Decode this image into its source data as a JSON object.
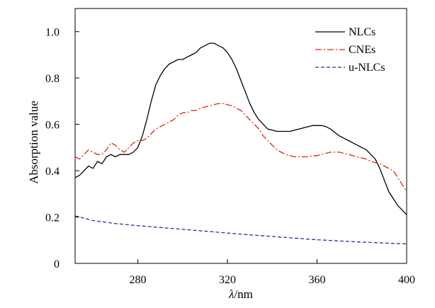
{
  "chart_data": {
    "type": "line",
    "title": "",
    "xlabel_italic": "λ",
    "xlabel_rest": "/nm",
    "ylabel": "Absorption value",
    "xlim": [
      252,
      400
    ],
    "ylim": [
      0,
      1.1
    ],
    "xticks": [
      280,
      320,
      360,
      400
    ],
    "xtick_labels": [
      "280",
      "320",
      "360",
      "400"
    ],
    "yticks": [
      0,
      0.2,
      0.4,
      0.6,
      0.8,
      1.0
    ],
    "ytick_labels": [
      "0",
      "0.2",
      "0.4",
      "0.6",
      "0.8",
      "1.0"
    ],
    "grid": false,
    "legend_position": "top-right",
    "series": [
      {
        "name": "NLCs",
        "color": "#000000",
        "dash": "solid",
        "x": [
          252,
          254,
          256,
          258,
          260,
          262,
          264,
          266,
          268,
          270,
          272,
          274,
          276,
          278,
          280,
          282,
          284,
          286,
          288,
          290,
          292,
          294,
          296,
          298,
          300,
          302,
          304,
          306,
          308,
          310,
          312,
          314,
          316,
          318,
          320,
          322,
          324,
          326,
          328,
          330,
          332,
          334,
          336,
          338,
          340,
          342,
          344,
          346,
          348,
          350,
          352,
          354,
          356,
          358,
          360,
          362,
          364,
          366,
          368,
          370,
          372,
          374,
          376,
          378,
          380,
          382,
          384,
          386,
          388,
          390,
          392,
          394,
          396,
          398,
          400
        ],
        "y": [
          0.37,
          0.38,
          0.4,
          0.42,
          0.41,
          0.44,
          0.43,
          0.46,
          0.47,
          0.46,
          0.47,
          0.47,
          0.47,
          0.48,
          0.5,
          0.55,
          0.62,
          0.7,
          0.77,
          0.81,
          0.84,
          0.86,
          0.87,
          0.88,
          0.88,
          0.89,
          0.9,
          0.91,
          0.93,
          0.94,
          0.95,
          0.95,
          0.94,
          0.93,
          0.91,
          0.88,
          0.84,
          0.79,
          0.74,
          0.69,
          0.65,
          0.62,
          0.6,
          0.58,
          0.575,
          0.57,
          0.57,
          0.57,
          0.57,
          0.575,
          0.58,
          0.585,
          0.59,
          0.595,
          0.595,
          0.595,
          0.59,
          0.58,
          0.565,
          0.55,
          0.54,
          0.53,
          0.52,
          0.51,
          0.5,
          0.49,
          0.47,
          0.45,
          0.41,
          0.36,
          0.31,
          0.28,
          0.25,
          0.23,
          0.21
        ]
      },
      {
        "name": "CNEs",
        "color": "#d42a14",
        "dash": "dashdot",
        "x": [
          252,
          254,
          256,
          258,
          260,
          262,
          264,
          266,
          268,
          270,
          272,
          274,
          276,
          278,
          280,
          282,
          284,
          286,
          288,
          290,
          292,
          294,
          296,
          298,
          300,
          302,
          304,
          306,
          308,
          310,
          312,
          314,
          316,
          318,
          320,
          322,
          324,
          326,
          328,
          330,
          332,
          334,
          336,
          338,
          340,
          342,
          344,
          346,
          348,
          350,
          352,
          354,
          356,
          358,
          360,
          362,
          364,
          366,
          368,
          370,
          372,
          374,
          376,
          378,
          380,
          382,
          384,
          386,
          388,
          390,
          392,
          394,
          396,
          398,
          400
        ],
        "y": [
          0.46,
          0.45,
          0.47,
          0.49,
          0.48,
          0.47,
          0.47,
          0.49,
          0.52,
          0.51,
          0.49,
          0.48,
          0.5,
          0.52,
          0.53,
          0.53,
          0.54,
          0.56,
          0.58,
          0.59,
          0.6,
          0.61,
          0.62,
          0.64,
          0.65,
          0.65,
          0.66,
          0.66,
          0.67,
          0.675,
          0.68,
          0.685,
          0.69,
          0.69,
          0.685,
          0.68,
          0.67,
          0.66,
          0.64,
          0.62,
          0.6,
          0.58,
          0.55,
          0.53,
          0.51,
          0.49,
          0.48,
          0.47,
          0.465,
          0.46,
          0.46,
          0.46,
          0.46,
          0.465,
          0.465,
          0.47,
          0.475,
          0.48,
          0.48,
          0.48,
          0.475,
          0.47,
          0.465,
          0.46,
          0.455,
          0.45,
          0.44,
          0.435,
          0.43,
          0.42,
          0.41,
          0.4,
          0.37,
          0.34,
          0.31
        ]
      },
      {
        "name": "u-NLCs",
        "color": "#1f3a8c",
        "dash": "dashed",
        "x": [
          252,
          260,
          270,
          280,
          290,
          300,
          310,
          320,
          330,
          340,
          350,
          360,
          370,
          380,
          390,
          400
        ],
        "y": [
          0.205,
          0.185,
          0.172,
          0.163,
          0.155,
          0.147,
          0.139,
          0.131,
          0.123,
          0.116,
          0.109,
          0.102,
          0.097,
          0.092,
          0.088,
          0.084
        ]
      }
    ]
  }
}
